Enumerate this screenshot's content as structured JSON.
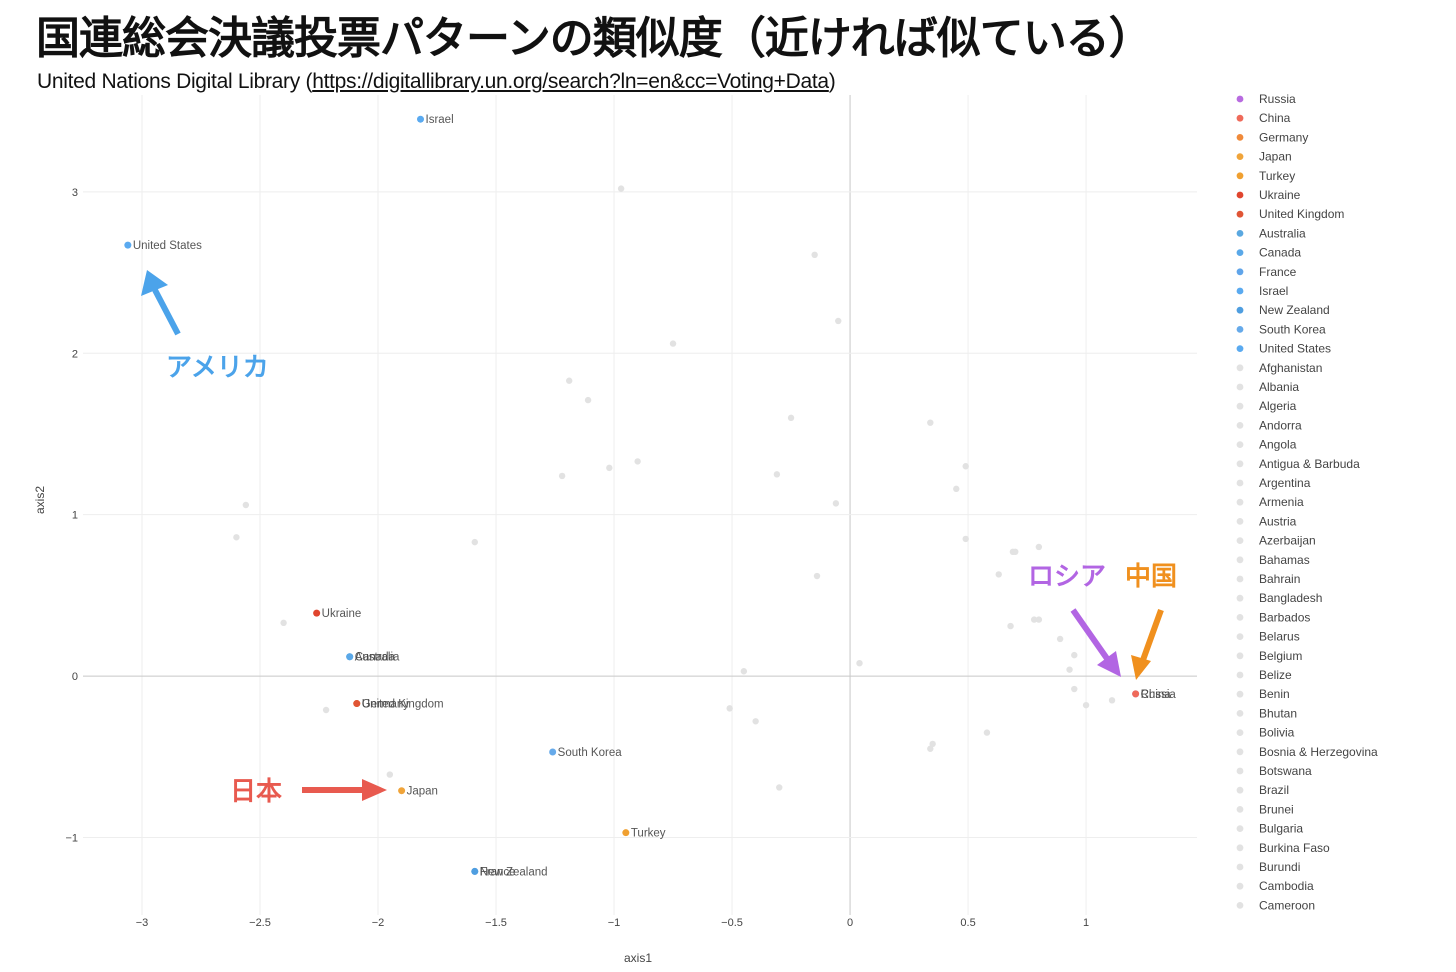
{
  "title": "国連総会決議投票パターンの類似度（近ければ似ている）",
  "subtitle": {
    "prefix": "United Nations Digital Library (",
    "link": "https://digitallibrary.un.org/search?ln=en&cc=Voting+Data",
    "suffix": ")"
  },
  "chart_data": {
    "type": "scatter",
    "xlabel": "axis1",
    "ylabel": "axis2",
    "xlim": [
      -3.25,
      1.47
    ],
    "ylim": [
      -1.48,
      3.6
    ],
    "x_ticks": [
      {
        "value": -3,
        "label": "−3"
      },
      {
        "value": -2.5,
        "label": "−2.5"
      },
      {
        "value": -2,
        "label": "−2"
      },
      {
        "value": -1.5,
        "label": "−1.5"
      },
      {
        "value": -1,
        "label": "−1"
      },
      {
        "value": -0.5,
        "label": "−0.5"
      },
      {
        "value": 0,
        "label": "0"
      },
      {
        "value": 0.5,
        "label": "0.5"
      },
      {
        "value": 1,
        "label": "1"
      }
    ],
    "y_ticks": [
      {
        "value": -1,
        "label": "−1"
      },
      {
        "value": 0,
        "label": "0"
      },
      {
        "value": 1,
        "label": "1"
      },
      {
        "value": 2,
        "label": "2"
      },
      {
        "value": 3,
        "label": "3"
      }
    ],
    "grid": true,
    "legend_position": "right",
    "series": [
      {
        "name": "Russia",
        "color": "#b86be0",
        "points": [
          {
            "x": 1.21,
            "y": -0.11,
            "label": "Russia"
          }
        ]
      },
      {
        "name": "China",
        "color": "#ef6a5a",
        "points": [
          {
            "x": 1.21,
            "y": -0.11,
            "label": "China"
          }
        ]
      },
      {
        "name": "Germany",
        "color": "#f08a3a",
        "points": [
          {
            "x": -2.09,
            "y": -0.17,
            "label": "Germany"
          }
        ]
      },
      {
        "name": "Japan",
        "color": "#f0a43a",
        "points": [
          {
            "x": -1.9,
            "y": -0.71,
            "label": "Japan"
          }
        ]
      },
      {
        "name": "Turkey",
        "color": "#f0a030",
        "points": [
          {
            "x": -0.95,
            "y": -0.97,
            "label": "Turkey"
          }
        ]
      },
      {
        "name": "Ukraine",
        "color": "#e0452e",
        "points": [
          {
            "x": -2.26,
            "y": 0.39,
            "label": "Ukraine"
          }
        ]
      },
      {
        "name": "United Kingdom",
        "color": "#e05535",
        "points": [
          {
            "x": -2.09,
            "y": -0.17,
            "label": "United Kingdom"
          }
        ]
      },
      {
        "name": "Australia",
        "color": "#5aa8e0",
        "points": [
          {
            "x": -2.12,
            "y": 0.12,
            "label": "Australia"
          }
        ]
      },
      {
        "name": "Canada",
        "color": "#5aa8e8",
        "points": [
          {
            "x": -2.12,
            "y": 0.12,
            "label": "Canada"
          }
        ]
      },
      {
        "name": "France",
        "color": "#60a5ea",
        "points": [
          {
            "x": -1.59,
            "y": -1.21,
            "label": "France"
          }
        ]
      },
      {
        "name": "Israel",
        "color": "#5aaaf0",
        "points": [
          {
            "x": -1.82,
            "y": 3.45,
            "label": "Israel"
          }
        ]
      },
      {
        "name": "New Zealand",
        "color": "#4f9ee0",
        "points": [
          {
            "x": -1.59,
            "y": -1.21,
            "label": "New Zealand"
          }
        ]
      },
      {
        "name": "South Korea",
        "color": "#66aaea",
        "points": [
          {
            "x": -1.26,
            "y": -0.47,
            "label": "South Korea"
          }
        ]
      },
      {
        "name": "United States",
        "color": "#5aaaf0",
        "points": [
          {
            "x": -3.06,
            "y": 2.67,
            "label": "United States"
          }
        ]
      }
    ],
    "background_points_color": "#e2e2e2",
    "background_points": [
      [
        -0.97,
        3.02
      ],
      [
        -0.15,
        2.61
      ],
      [
        -0.05,
        2.2
      ],
      [
        -0.75,
        2.06
      ],
      [
        -1.19,
        1.83
      ],
      [
        -1.11,
        1.71
      ],
      [
        -0.25,
        1.6
      ],
      [
        0.34,
        1.57
      ],
      [
        -0.9,
        1.33
      ],
      [
        -1.02,
        1.29
      ],
      [
        -1.22,
        1.24
      ],
      [
        -0.31,
        1.25
      ],
      [
        0.49,
        1.3
      ],
      [
        0.45,
        1.16
      ],
      [
        -0.06,
        1.07
      ],
      [
        -2.56,
        1.06
      ],
      [
        -2.6,
        0.86
      ],
      [
        -1.59,
        0.83
      ],
      [
        0.49,
        0.85
      ],
      [
        0.69,
        0.77
      ],
      [
        0.7,
        0.77
      ],
      [
        0.8,
        0.8
      ],
      [
        0.63,
        0.63
      ],
      [
        -0.14,
        0.62
      ],
      [
        -2.4,
        0.33
      ],
      [
        0.68,
        0.31
      ],
      [
        0.78,
        0.35
      ],
      [
        0.8,
        0.35
      ],
      [
        0.89,
        0.23
      ],
      [
        0.95,
        0.13
      ],
      [
        0.04,
        0.08
      ],
      [
        -0.45,
        0.03
      ],
      [
        0.93,
        0.04
      ],
      [
        0.95,
        -0.08
      ],
      [
        1.0,
        -0.18
      ],
      [
        1.11,
        -0.15
      ],
      [
        -2.22,
        -0.21
      ],
      [
        -0.51,
        -0.2
      ],
      [
        -0.4,
        -0.28
      ],
      [
        0.58,
        -0.35
      ],
      [
        0.35,
        -0.42
      ],
      [
        0.34,
        -0.45
      ],
      [
        -1.95,
        -0.61
      ],
      [
        -0.3,
        -0.69
      ]
    ]
  },
  "legend_entries": [
    {
      "label": "Russia",
      "color": "#b86be0"
    },
    {
      "label": "China",
      "color": "#ef6a5a"
    },
    {
      "label": "Germany",
      "color": "#f08a3a"
    },
    {
      "label": "Japan",
      "color": "#f0a43a"
    },
    {
      "label": "Turkey",
      "color": "#f0a030"
    },
    {
      "label": "Ukraine",
      "color": "#e0452e"
    },
    {
      "label": "United Kingdom",
      "color": "#e05535"
    },
    {
      "label": "Australia",
      "color": "#5aa8e0"
    },
    {
      "label": "Canada",
      "color": "#5aa8e8"
    },
    {
      "label": "France",
      "color": "#60a5ea"
    },
    {
      "label": "Israel",
      "color": "#5aaaf0"
    },
    {
      "label": "New Zealand",
      "color": "#4f9ee0"
    },
    {
      "label": "South Korea",
      "color": "#66aaea"
    },
    {
      "label": "United States",
      "color": "#5aaaf0"
    },
    {
      "label": "Afghanistan",
      "color": "#e2e2e2"
    },
    {
      "label": "Albania",
      "color": "#e2e2e2"
    },
    {
      "label": "Algeria",
      "color": "#e2e2e2"
    },
    {
      "label": "Andorra",
      "color": "#e2e2e2"
    },
    {
      "label": "Angola",
      "color": "#e2e2e2"
    },
    {
      "label": "Antigua & Barbuda",
      "color": "#e2e2e2"
    },
    {
      "label": "Argentina",
      "color": "#e2e2e2"
    },
    {
      "label": "Armenia",
      "color": "#e2e2e2"
    },
    {
      "label": "Austria",
      "color": "#e2e2e2"
    },
    {
      "label": "Azerbaijan",
      "color": "#e2e2e2"
    },
    {
      "label": "Bahamas",
      "color": "#e2e2e2"
    },
    {
      "label": "Bahrain",
      "color": "#e2e2e2"
    },
    {
      "label": "Bangladesh",
      "color": "#e2e2e2"
    },
    {
      "label": "Barbados",
      "color": "#e2e2e2"
    },
    {
      "label": "Belarus",
      "color": "#e2e2e2"
    },
    {
      "label": "Belgium",
      "color": "#e2e2e2"
    },
    {
      "label": "Belize",
      "color": "#e2e2e2"
    },
    {
      "label": "Benin",
      "color": "#e2e2e2"
    },
    {
      "label": "Bhutan",
      "color": "#e2e2e2"
    },
    {
      "label": "Bolivia",
      "color": "#e2e2e2"
    },
    {
      "label": "Bosnia & Herzegovina",
      "color": "#e2e2e2"
    },
    {
      "label": "Botswana",
      "color": "#e2e2e2"
    },
    {
      "label": "Brazil",
      "color": "#e2e2e2"
    },
    {
      "label": "Brunei",
      "color": "#e2e2e2"
    },
    {
      "label": "Bulgaria",
      "color": "#e2e2e2"
    },
    {
      "label": "Burkina Faso",
      "color": "#e2e2e2"
    },
    {
      "label": "Burundi",
      "color": "#e2e2e2"
    },
    {
      "label": "Cambodia",
      "color": "#e2e2e2"
    },
    {
      "label": "Cameroon",
      "color": "#e2e2e2"
    }
  ],
  "annotations": [
    {
      "text": "アメリカ",
      "color": "#4ba3ea"
    },
    {
      "text": "ロシア",
      "color": "#b265e3"
    },
    {
      "text": "中国",
      "color": "#f0901e"
    },
    {
      "text": "日本",
      "color": "#e85a4f"
    }
  ]
}
